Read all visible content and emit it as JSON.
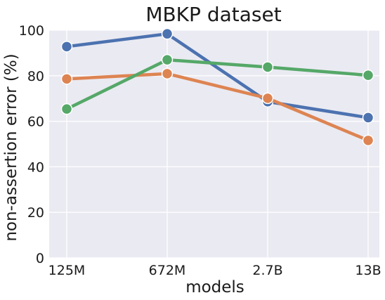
{
  "chart_data": {
    "type": "line",
    "title": "MBKP dataset",
    "xlabel": "models",
    "ylabel": "non-assertion error (%)",
    "categories": [
      "125M",
      "672M",
      "2.7B",
      "13B"
    ],
    "ylim": [
      0,
      100
    ],
    "yticks": [
      "0",
      "20",
      "40",
      "60",
      "80",
      "100"
    ],
    "grid": true,
    "background": "#eaeaf2",
    "series": [
      {
        "color": "#4c72b0",
        "values": [
          92.8,
          98.4,
          68.6,
          61.6
        ]
      },
      {
        "color": "#dd8452",
        "values": [
          78.6,
          80.9,
          70.1,
          51.6
        ]
      },
      {
        "color": "#55a868",
        "values": [
          65.4,
          87.0,
          83.8,
          80.2
        ]
      }
    ]
  }
}
